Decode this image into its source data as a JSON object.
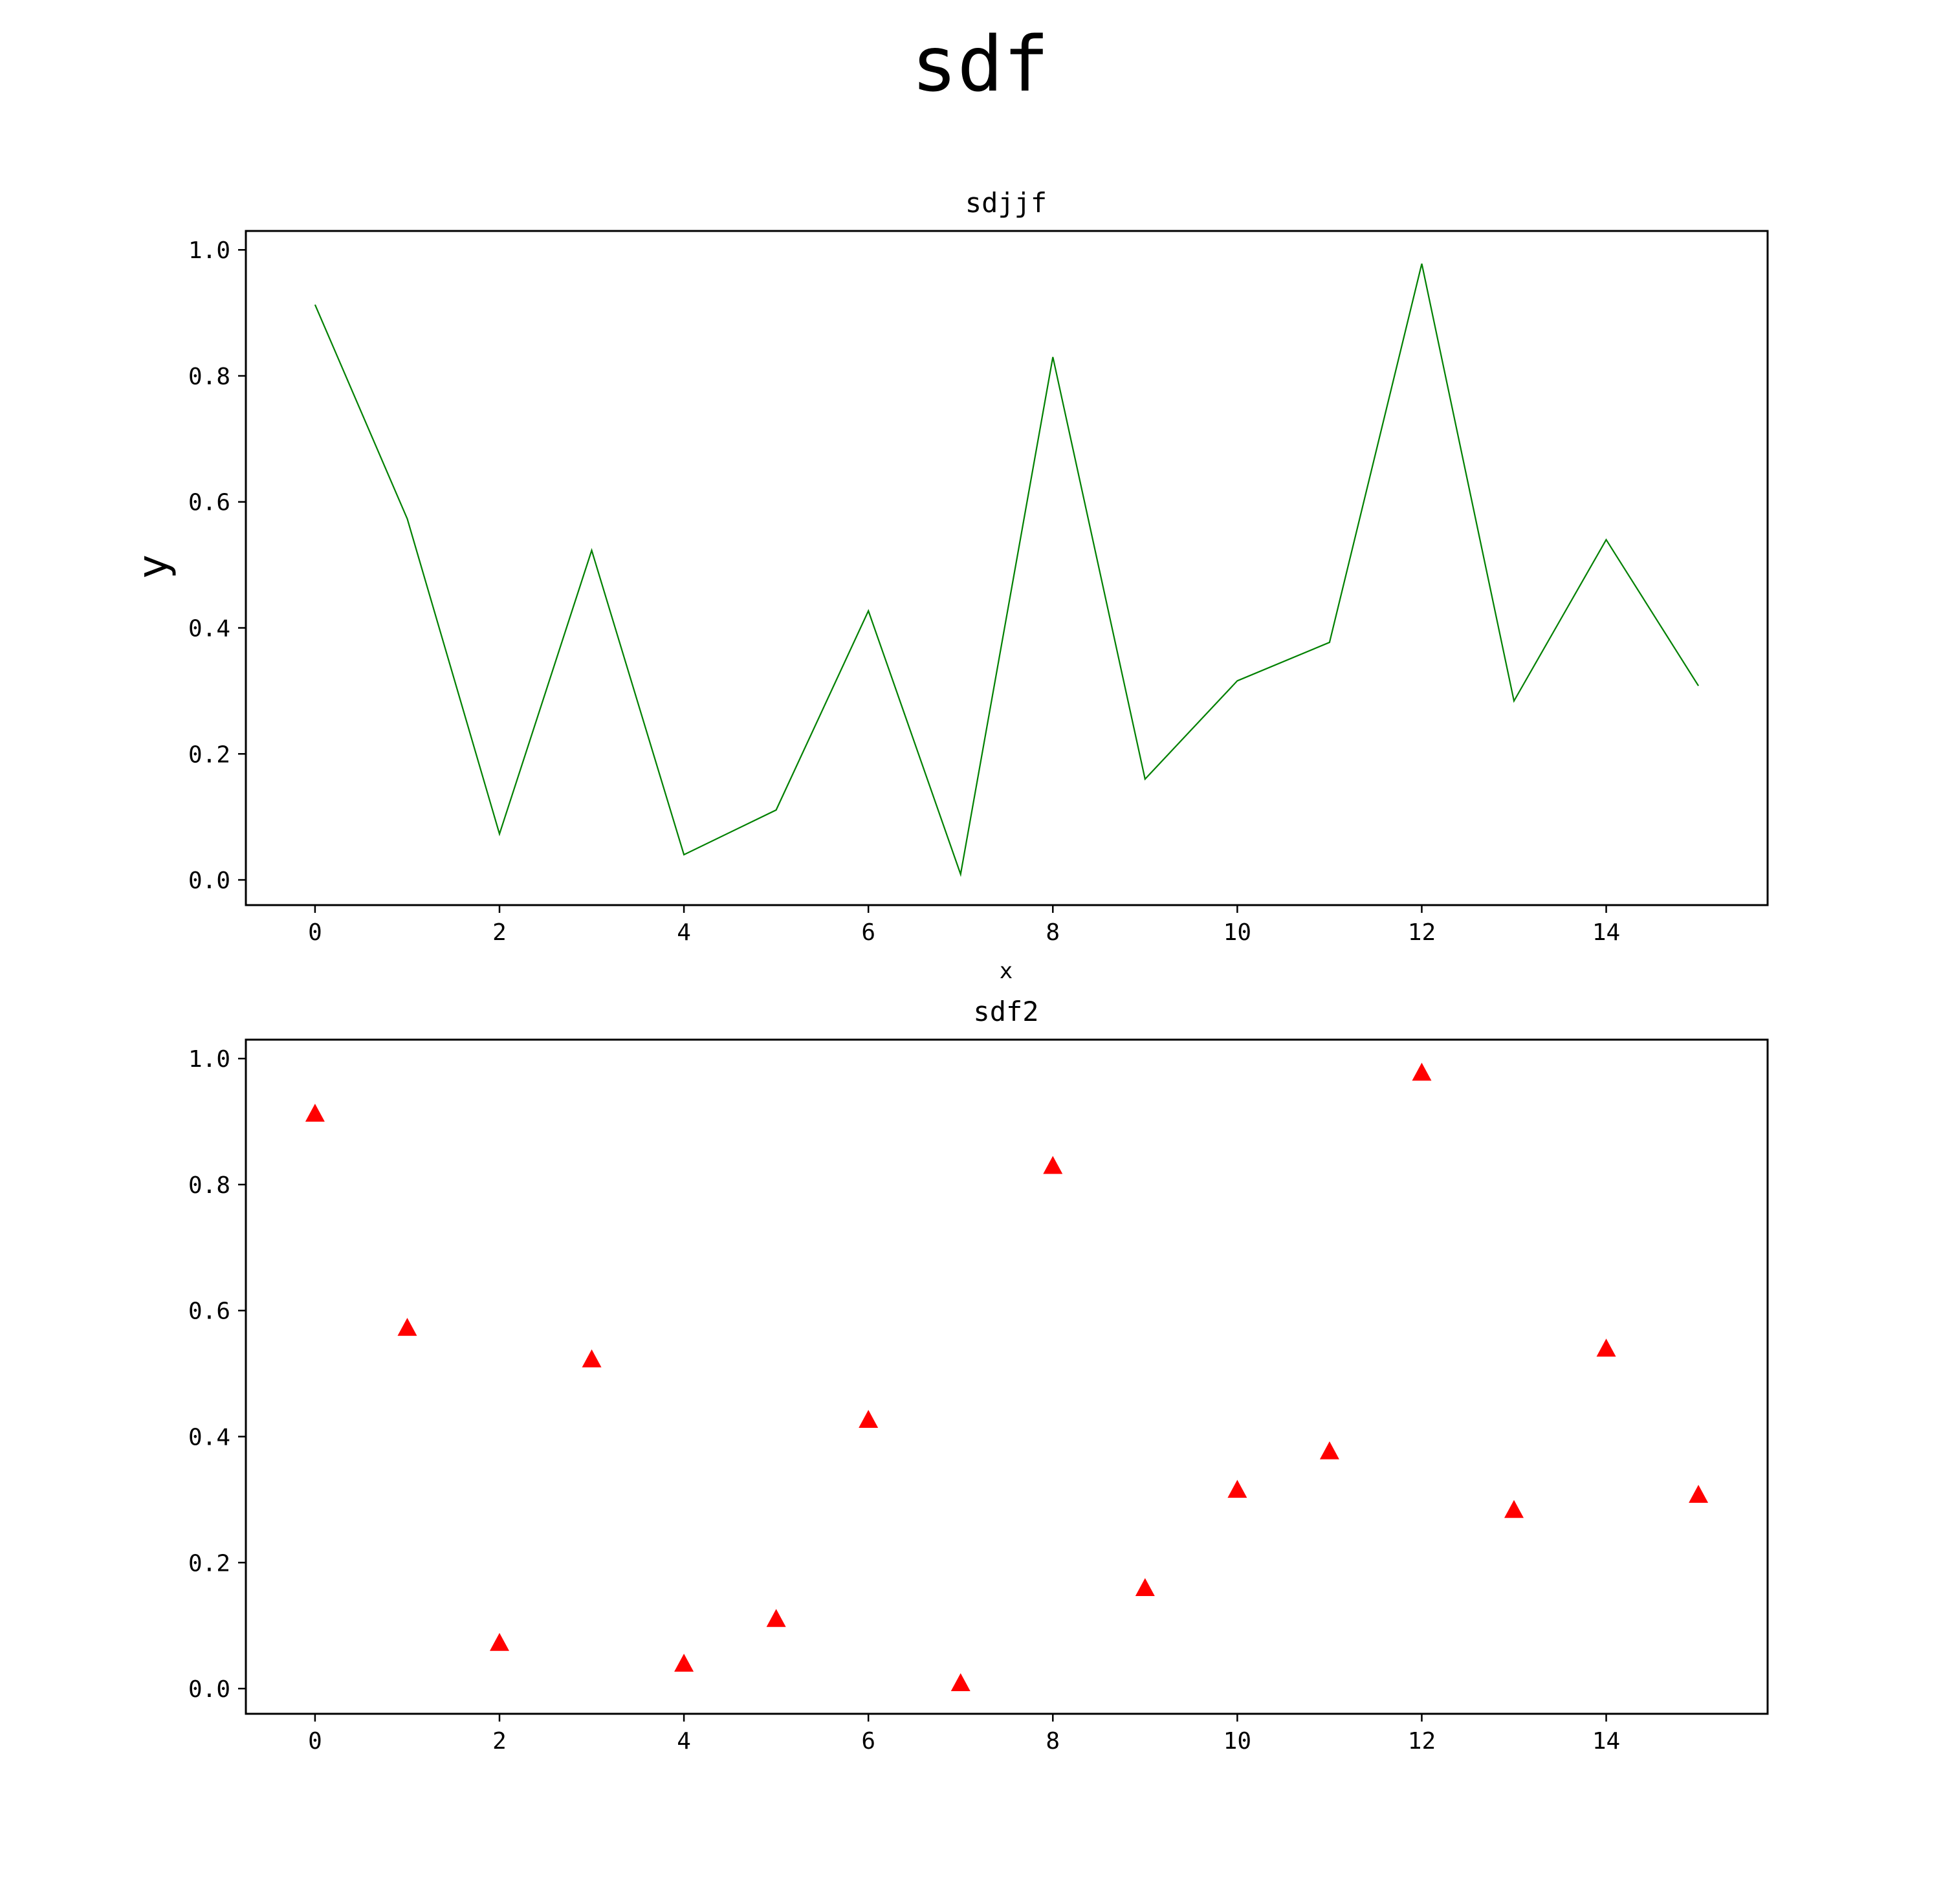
{
  "figure": {
    "title": "sdf"
  },
  "chart_data": [
    {
      "type": "line",
      "title": "sdjjf",
      "xlabel": "x",
      "ylabel": "y",
      "color": "#008000",
      "x": [
        0,
        1,
        2,
        3,
        4,
        5,
        6,
        7,
        8,
        9,
        10,
        11,
        12,
        13,
        14,
        15
      ],
      "series": [
        {
          "values": [
            0.913,
            0.573,
            0.073,
            0.523,
            0.04,
            0.111,
            0.427,
            0.009,
            0.83,
            0.16,
            0.316,
            0.377,
            0.978,
            0.284,
            0.54,
            0.308
          ]
        }
      ],
      "xlim": [
        -0.75,
        15.75
      ],
      "ylim": [
        -0.04,
        1.03
      ],
      "xticks": [
        0,
        2,
        4,
        6,
        8,
        10,
        12,
        14
      ],
      "xtick_labels": [
        "0",
        "2",
        "4",
        "6",
        "8",
        "10",
        "12",
        "14"
      ],
      "yticks": [
        0.0,
        0.2,
        0.4,
        0.6,
        0.8,
        1.0
      ],
      "ytick_labels": [
        "0.0",
        "0.2",
        "0.4",
        "0.6",
        "0.8",
        "1.0"
      ],
      "grid": false
    },
    {
      "type": "scatter",
      "title": "sdf2",
      "xlabel": "",
      "ylabel": "",
      "color": "#ff0000",
      "marker": "triangle-up",
      "x": [
        0,
        1,
        2,
        3,
        4,
        5,
        6,
        7,
        8,
        9,
        10,
        11,
        12,
        13,
        14,
        15
      ],
      "series": [
        {
          "values": [
            0.913,
            0.573,
            0.073,
            0.523,
            0.04,
            0.111,
            0.427,
            0.009,
            0.83,
            0.16,
            0.316,
            0.377,
            0.978,
            0.284,
            0.54,
            0.308
          ]
        }
      ],
      "xlim": [
        -0.75,
        15.75
      ],
      "ylim": [
        -0.04,
        1.03
      ],
      "xticks": [
        0,
        2,
        4,
        6,
        8,
        10,
        12,
        14
      ],
      "xtick_labels": [
        "0",
        "2",
        "4",
        "6",
        "8",
        "10",
        "12",
        "14"
      ],
      "yticks": [
        0.0,
        0.2,
        0.4,
        0.6,
        0.8,
        1.0
      ],
      "ytick_labels": [
        "0.0",
        "0.2",
        "0.4",
        "0.6",
        "0.8",
        "1.0"
      ],
      "grid": false
    }
  ]
}
